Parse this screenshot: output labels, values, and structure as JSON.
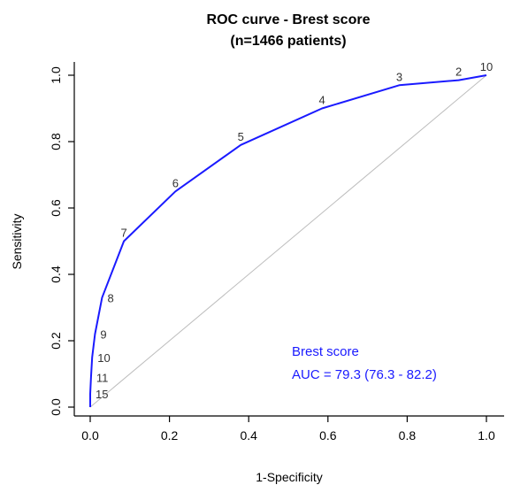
{
  "chart_data": {
    "type": "line",
    "title": [
      "ROC curve - Brest score",
      "(n=1466 patients)"
    ],
    "xlabel": "1-Specificity",
    "ylabel": "Sensitivity",
    "xlim": [
      0,
      1
    ],
    "ylim": [
      0,
      1
    ],
    "xticks": [
      "0.0",
      "0.2",
      "0.4",
      "0.6",
      "0.8",
      "1.0"
    ],
    "yticks": [
      "0.0",
      "0.2",
      "0.4",
      "0.6",
      "0.8",
      "1.0"
    ],
    "grid": false,
    "diagonal_reference": true,
    "series": [
      {
        "color": "#1a1aff",
        "x": [
          0.0,
          0.0,
          0.002,
          0.005,
          0.012,
          0.03,
          0.085,
          0.215,
          0.38,
          0.585,
          0.78,
          0.93,
          1.0
        ],
        "y": [
          0.0,
          0.04,
          0.09,
          0.15,
          0.22,
          0.33,
          0.5,
          0.65,
          0.79,
          0.9,
          0.97,
          0.985,
          1.0
        ],
        "point_labels": [
          "",
          "15",
          "11",
          "10",
          "9",
          "8",
          "7",
          "6",
          "5",
          "4",
          "3",
          "2",
          "10"
        ]
      }
    ],
    "annotation": {
      "lines": [
        "Brest score",
        "AUC = 79.3 (76.3 - 82.2)"
      ],
      "color": "#1a1aff"
    }
  }
}
